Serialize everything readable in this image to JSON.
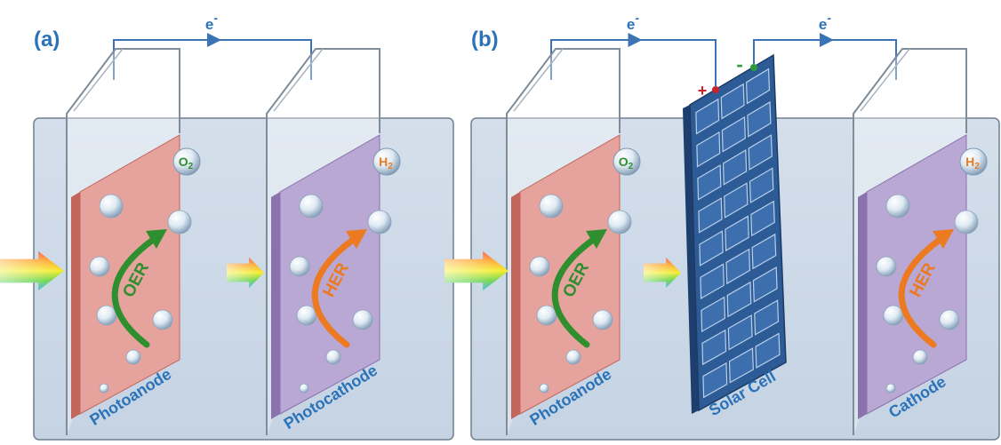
{
  "panels": [
    {
      "label": "(a)",
      "wires": [
        {
          "symbol": "e",
          "charge": "-"
        }
      ],
      "electrodes": [
        {
          "name": "Photoanode",
          "reaction": "OER",
          "gas": {
            "element": "O",
            "subscript": "2"
          }
        },
        {
          "name": "Photocathode",
          "reaction": "HER",
          "gas": {
            "element": "H",
            "subscript": "2"
          }
        }
      ]
    },
    {
      "label": "(b)",
      "wires": [
        {
          "symbol": "e",
          "charge": "-"
        },
        {
          "symbol": "e",
          "charge": "-"
        }
      ],
      "electrodes": [
        {
          "name": "Photoanode",
          "reaction": "OER",
          "gas": {
            "element": "O",
            "subscript": "2"
          }
        },
        {
          "name": "Cathode",
          "reaction": "HER",
          "gas": {
            "element": "H",
            "subscript": "2"
          }
        }
      ],
      "solar_cell": {
        "name": "Solar Cell",
        "positive": "+",
        "negative": "-"
      }
    }
  ]
}
